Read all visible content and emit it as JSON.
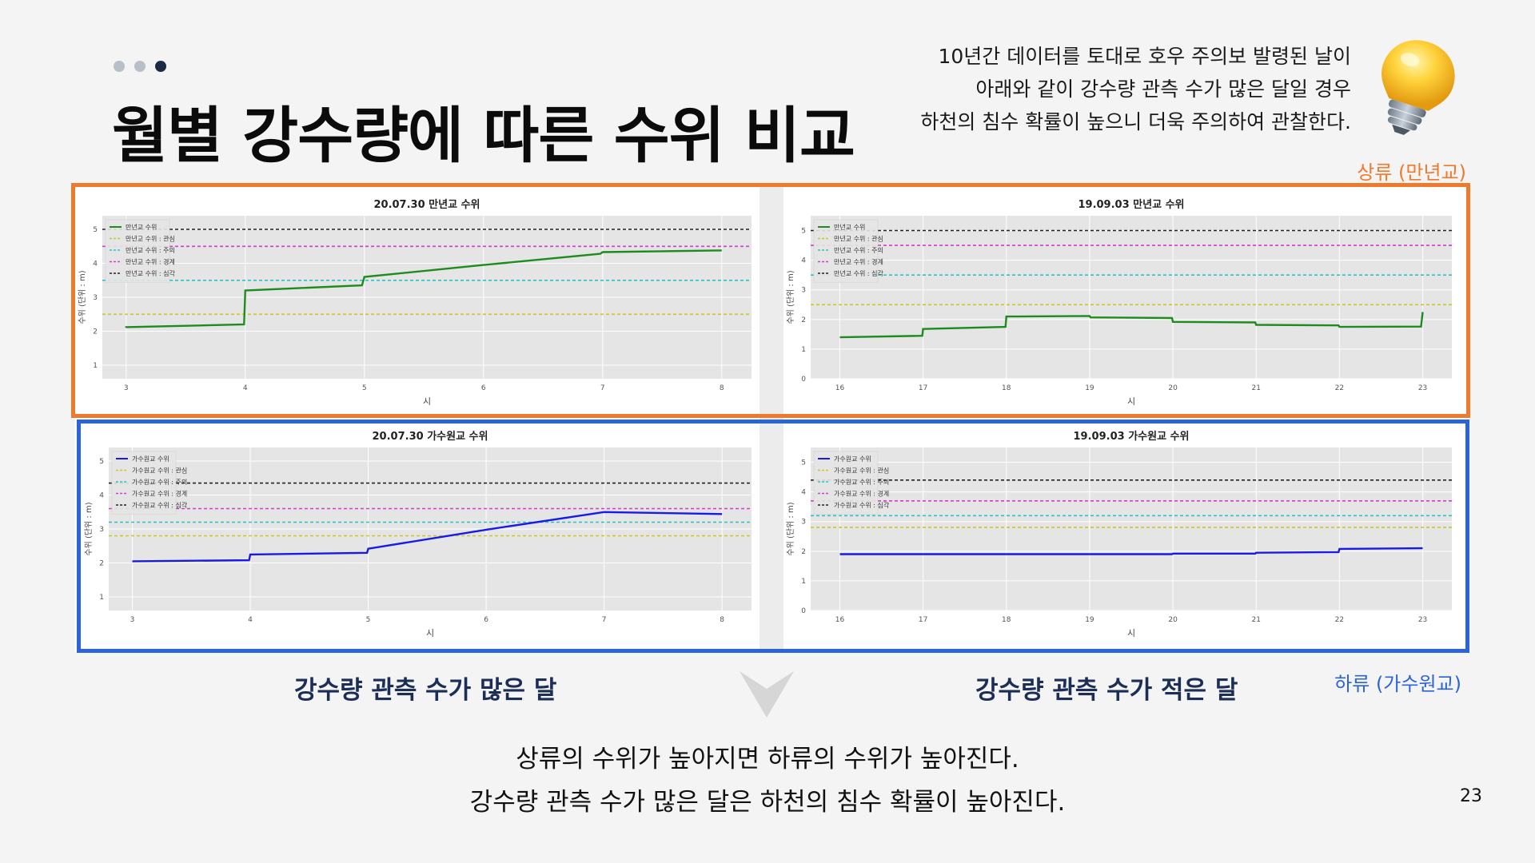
{
  "page": {
    "title": "월별 강수량에 따른 수위 비교",
    "insight": [
      "10년간 데이터를 토대로 호우 주의보 발령된 날이",
      "아래와 같이 강수량 관측 수가 많은 달일 경우",
      "하천의 침수 확률이 높으니 더욱 주의하여 관찰한다."
    ],
    "label_upstream": "상류 (만년교)",
    "label_downstream": "하류 (가수원교)",
    "caption_left": "강수량 관측 수가 많은 달",
    "caption_right": "강수량 관측 수가 적은 달",
    "conclusion": [
      "상류의 수위가 높아지면 하류의 수위가 높아진다.",
      "강수량 관측 수가 많은 달은 하천의 침수 확률이 높아진다."
    ],
    "page_number": "23",
    "icon": "lightbulb-icon",
    "colors": {
      "accent_orange": "#f07a2b",
      "accent_blue": "#2a64d8",
      "caption_navy": "#1c2e55",
      "dot_active": "#1c2a44",
      "dot_inactive": "#b9bfc8"
    }
  },
  "chart_data": [
    {
      "type": "line",
      "title": "20.07.30 만년교 수위",
      "xlabel": "시",
      "ylabel": "수위 (단위 : m)",
      "xlim": [
        2.8,
        8.25
      ],
      "ylim": [
        0.6,
        5.4
      ],
      "xticks": [
        3,
        4,
        5,
        6,
        7,
        8
      ],
      "yticks": [
        1,
        2,
        3,
        4,
        5
      ],
      "grid": true,
      "legend": "top-left",
      "series": [
        {
          "name": "만년교 수위",
          "color": "#1e8b1e",
          "style": "solid",
          "width": 2.4,
          "points": [
            [
              3.0,
              2.1
            ],
            [
              3.0,
              2.12
            ],
            [
              3.99,
              2.2
            ],
            [
              4.0,
              3.2
            ],
            [
              4.98,
              3.35
            ],
            [
              5.0,
              3.6
            ],
            [
              6.0,
              3.95
            ],
            [
              6.98,
              4.28
            ],
            [
              7.0,
              4.33
            ],
            [
              8.0,
              4.38
            ]
          ]
        },
        {
          "name": "만년교 수위 : 관심",
          "color": "#c8c828",
          "style": "dashed",
          "points": [
            [
              2.8,
              2.5
            ],
            [
              8.25,
              2.5
            ]
          ]
        },
        {
          "name": "만년교 수위 : 주의",
          "color": "#2bc4c4",
          "style": "dashed",
          "points": [
            [
              2.8,
              3.5
            ],
            [
              8.25,
              3.5
            ]
          ]
        },
        {
          "name": "만년교 수위 : 경계",
          "color": "#d43ad4",
          "style": "dashed",
          "points": [
            [
              2.8,
              4.5
            ],
            [
              8.25,
              4.5
            ]
          ]
        },
        {
          "name": "만년교 수위 : 심각",
          "color": "#222222",
          "style": "dashed",
          "points": [
            [
              2.8,
              5.0
            ],
            [
              8.25,
              5.0
            ]
          ]
        }
      ]
    },
    {
      "type": "line",
      "title": "19.09.03 만년교 수위",
      "xlabel": "시",
      "ylabel": "수위 (단위 : m)",
      "xlim": [
        15.65,
        23.35
      ],
      "ylim": [
        0,
        5.5
      ],
      "xticks": [
        16,
        17,
        18,
        19,
        20,
        21,
        22,
        23
      ],
      "yticks": [
        0,
        1,
        2,
        3,
        4,
        5
      ],
      "grid": true,
      "legend": "top-left",
      "series": [
        {
          "name": "만년교 수위",
          "color": "#1e8b1e",
          "style": "solid",
          "width": 2.4,
          "points": [
            [
              16.0,
              1.4
            ],
            [
              16.99,
              1.45
            ],
            [
              17.0,
              1.68
            ],
            [
              17.99,
              1.75
            ],
            [
              18.0,
              2.1
            ],
            [
              19.0,
              2.12
            ],
            [
              19.01,
              2.07
            ],
            [
              19.99,
              2.05
            ],
            [
              20.0,
              1.92
            ],
            [
              20.99,
              1.9
            ],
            [
              21.0,
              1.82
            ],
            [
              21.99,
              1.8
            ],
            [
              22.0,
              1.75
            ],
            [
              22.98,
              1.76
            ],
            [
              23.0,
              2.25
            ]
          ]
        },
        {
          "name": "만년교 수위 : 관심",
          "color": "#c8c828",
          "style": "dashed",
          "points": [
            [
              15.65,
              2.5
            ],
            [
              23.35,
              2.5
            ]
          ]
        },
        {
          "name": "만년교 수위 : 주의",
          "color": "#2bc4c4",
          "style": "dashed",
          "points": [
            [
              15.65,
              3.5
            ],
            [
              23.35,
              3.5
            ]
          ]
        },
        {
          "name": "만년교 수위 : 경계",
          "color": "#d43ad4",
          "style": "dashed",
          "points": [
            [
              15.65,
              4.5
            ],
            [
              23.35,
              4.5
            ]
          ]
        },
        {
          "name": "만년교 수위 : 심각",
          "color": "#222222",
          "style": "dashed",
          "points": [
            [
              15.65,
              5.0
            ],
            [
              23.35,
              5.0
            ]
          ]
        }
      ]
    },
    {
      "type": "line",
      "title": "20.07.30 가수원교 수위",
      "xlabel": "시",
      "ylabel": "수위 (단위 : m)",
      "xlim": [
        2.8,
        8.25
      ],
      "ylim": [
        0.6,
        5.4
      ],
      "xticks": [
        3,
        4,
        5,
        6,
        7,
        8
      ],
      "yticks": [
        1,
        2,
        3,
        4,
        5
      ],
      "grid": true,
      "legend": "top-left",
      "series": [
        {
          "name": "가수원교 수위",
          "color": "#1a1ae6",
          "style": "solid",
          "width": 2.4,
          "points": [
            [
              3.0,
              2.05
            ],
            [
              3.99,
              2.08
            ],
            [
              4.0,
              2.25
            ],
            [
              4.99,
              2.3
            ],
            [
              5.0,
              2.42
            ],
            [
              6.0,
              2.98
            ],
            [
              7.0,
              3.5
            ],
            [
              8.0,
              3.44
            ]
          ]
        },
        {
          "name": "가수원교 수위 : 관심",
          "color": "#c8c828",
          "style": "dashed",
          "points": [
            [
              2.8,
              2.8
            ],
            [
              8.25,
              2.8
            ]
          ]
        },
        {
          "name": "가수원교 수위 : 주의",
          "color": "#2bc4c4",
          "style": "dashed",
          "points": [
            [
              2.8,
              3.2
            ],
            [
              8.25,
              3.2
            ]
          ]
        },
        {
          "name": "가수원교 수위 : 경계",
          "color": "#d43ad4",
          "style": "dashed",
          "points": [
            [
              2.8,
              3.6
            ],
            [
              8.25,
              3.6
            ]
          ]
        },
        {
          "name": "가수원교 수위 : 심각",
          "color": "#222222",
          "style": "dashed",
          "points": [
            [
              2.8,
              4.35
            ],
            [
              8.25,
              4.35
            ]
          ]
        }
      ]
    },
    {
      "type": "line",
      "title": "19.09.03 가수원교 수위",
      "xlabel": "시",
      "ylabel": "수위 (단위 : m)",
      "xlim": [
        15.65,
        23.35
      ],
      "ylim": [
        0,
        5.5
      ],
      "xticks": [
        16,
        17,
        18,
        19,
        20,
        21,
        22,
        23
      ],
      "yticks": [
        0,
        1,
        2,
        3,
        4,
        5
      ],
      "grid": true,
      "legend": "top-left",
      "series": [
        {
          "name": "가수원교 수위",
          "color": "#1a1ae6",
          "style": "solid",
          "width": 2.4,
          "points": [
            [
              16.0,
              1.9
            ],
            [
              19.99,
              1.9
            ],
            [
              20.0,
              1.92
            ],
            [
              20.99,
              1.92
            ],
            [
              21.0,
              1.95
            ],
            [
              21.99,
              1.97
            ],
            [
              22.0,
              2.08
            ],
            [
              23.0,
              2.1
            ]
          ]
        },
        {
          "name": "가수원교 수위 : 관심",
          "color": "#c8c828",
          "style": "dashed",
          "points": [
            [
              15.65,
              2.8
            ],
            [
              23.35,
              2.8
            ]
          ]
        },
        {
          "name": "가수원교 수위 : 주의",
          "color": "#2bc4c4",
          "style": "dashed",
          "points": [
            [
              15.65,
              3.2
            ],
            [
              23.35,
              3.2
            ]
          ]
        },
        {
          "name": "가수원교 수위 : 경계",
          "color": "#d43ad4",
          "style": "dashed",
          "points": [
            [
              15.65,
              3.7
            ],
            [
              23.35,
              3.7
            ]
          ]
        },
        {
          "name": "가수원교 수위 : 심각",
          "color": "#222222",
          "style": "dashed",
          "points": [
            [
              15.65,
              4.4
            ],
            [
              23.35,
              4.4
            ]
          ]
        }
      ]
    }
  ]
}
